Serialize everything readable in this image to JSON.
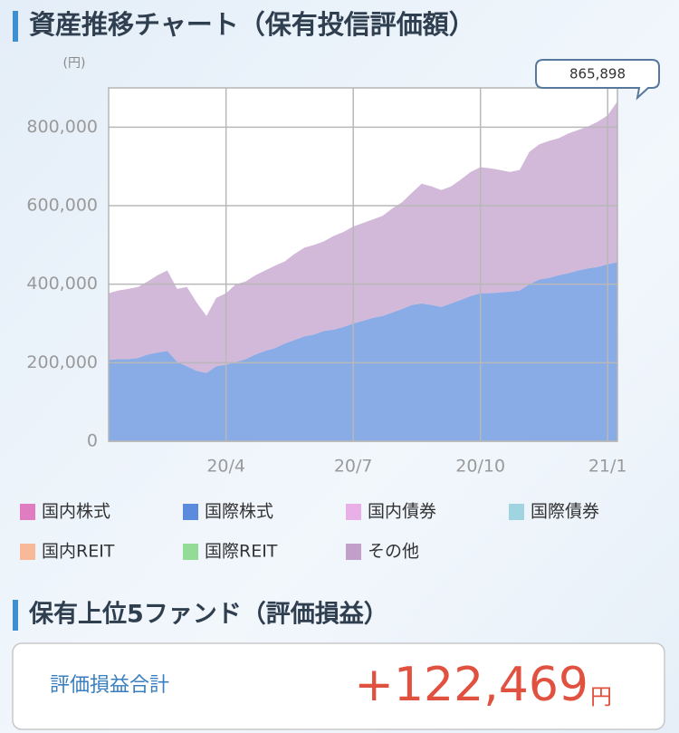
{
  "header": {
    "title": "資産推移チャート（保有投信評価額）"
  },
  "chart_data": {
    "type": "area",
    "stacked": true,
    "y_unit": "(円)",
    "annotation": "865,898",
    "categories": [
      null,
      null,
      null,
      null,
      null,
      null,
      null,
      null,
      null,
      null,
      null,
      null,
      "20/4",
      null,
      null,
      null,
      null,
      null,
      null,
      null,
      null,
      null,
      null,
      null,
      null,
      "20/7",
      null,
      null,
      null,
      null,
      null,
      null,
      null,
      null,
      null,
      null,
      null,
      null,
      "20/10",
      null,
      null,
      null,
      null,
      null,
      null,
      null,
      null,
      null,
      null,
      null,
      null,
      "21/1",
      null
    ],
    "ylim": [
      0,
      900000
    ],
    "yticks": [
      0,
      {
        "value": 200000,
        "label": "200,000"
      },
      {
        "value": 400000,
        "label": "400,000"
      },
      {
        "value": 600000,
        "label": "600,000"
      },
      {
        "value": 800000,
        "label": "800,000"
      }
    ],
    "grid": true,
    "series": [
      {
        "name": "国内株式",
        "color": "#e07cc0",
        "values": [
          0,
          0,
          0,
          0,
          0,
          0,
          0,
          0,
          0,
          0,
          0,
          0,
          0,
          0,
          0,
          0,
          0,
          0,
          0,
          0,
          0,
          0,
          0,
          0,
          0,
          0,
          0,
          0,
          0,
          0,
          0,
          0,
          0,
          0,
          0,
          0,
          0,
          0,
          0,
          0,
          0,
          0,
          0,
          0,
          0,
          0,
          0,
          0,
          0,
          0,
          0,
          0,
          0
        ]
      },
      {
        "name": "国際株式",
        "color": "#5b8bdc",
        "values": [
          207000,
          209000,
          209000,
          212000,
          221000,
          226000,
          230000,
          202000,
          191000,
          179000,
          174000,
          191000,
          195000,
          202000,
          209000,
          221000,
          230000,
          237000,
          249000,
          258000,
          267000,
          272000,
          281000,
          284000,
          291000,
          300000,
          307000,
          314000,
          319000,
          328000,
          337000,
          347000,
          351000,
          347000,
          342000,
          351000,
          360000,
          370000,
          377000,
          377000,
          379000,
          381000,
          384000,
          400000,
          412000,
          416000,
          423000,
          428000,
          435000,
          440000,
          444000,
          451000,
          456000
        ]
      },
      {
        "name": "国内債券",
        "color": "#e8b0e6",
        "values": [
          0,
          0,
          0,
          0,
          0,
          0,
          0,
          0,
          0,
          0,
          0,
          0,
          0,
          0,
          0,
          0,
          0,
          0,
          0,
          0,
          0,
          0,
          0,
          0,
          0,
          0,
          0,
          0,
          0,
          0,
          0,
          0,
          0,
          0,
          0,
          0,
          0,
          0,
          0,
          0,
          0,
          0,
          0,
          0,
          0,
          0,
          0,
          0,
          0,
          0,
          0,
          0,
          0
        ]
      },
      {
        "name": "国際債券",
        "color": "#9fd4e0",
        "values": [
          0,
          0,
          0,
          0,
          0,
          0,
          0,
          0,
          0,
          0,
          0,
          0,
          0,
          0,
          0,
          0,
          0,
          0,
          0,
          0,
          0,
          0,
          0,
          0,
          0,
          0,
          0,
          0,
          0,
          0,
          0,
          0,
          0,
          0,
          0,
          0,
          0,
          0,
          0,
          0,
          0,
          0,
          0,
          0,
          0,
          0,
          0,
          0,
          0,
          0,
          0,
          0,
          0
        ]
      },
      {
        "name": "国内REIT",
        "color": "#f7b997",
        "values": [
          0,
          0,
          0,
          0,
          0,
          0,
          0,
          0,
          0,
          0,
          0,
          0,
          0,
          0,
          0,
          0,
          0,
          0,
          0,
          0,
          0,
          0,
          0,
          0,
          0,
          0,
          0,
          0,
          0,
          0,
          0,
          0,
          0,
          0,
          0,
          0,
          0,
          0,
          0,
          0,
          0,
          0,
          0,
          0,
          0,
          0,
          0,
          0,
          0,
          0,
          0,
          0,
          0
        ]
      },
      {
        "name": "国際REIT",
        "color": "#93dc97",
        "values": [
          0,
          0,
          0,
          0,
          0,
          0,
          0,
          0,
          0,
          0,
          0,
          0,
          0,
          0,
          0,
          0,
          0,
          0,
          0,
          0,
          0,
          0,
          0,
          0,
          0,
          0,
          0,
          0,
          0,
          0,
          0,
          0,
          0,
          0,
          0,
          0,
          0,
          0,
          0,
          0,
          0,
          0,
          0,
          0,
          0,
          0,
          0,
          0,
          0,
          0,
          0,
          0,
          0
        ]
      },
      {
        "name": "その他",
        "color": "#c29ecb",
        "values": [
          170000,
          175000,
          179000,
          181000,
          186000,
          197000,
          205000,
          186000,
          202000,
          174000,
          145000,
          174000,
          182000,
          198000,
          198000,
          202000,
          205000,
          210000,
          209000,
          219000,
          226000,
          228000,
          228000,
          239000,
          242000,
          247000,
          249000,
          251000,
          255000,
          265000,
          272000,
          286000,
          305000,
          302000,
          298000,
          298000,
          307000,
          316000,
          321000,
          318000,
          312000,
          305000,
          307000,
          337000,
          344000,
          349000,
          349000,
          356000,
          358000,
          362000,
          370000,
          379000,
          409898
        ]
      }
    ]
  },
  "section": {
    "title": "保有上位5ファンド（評価損益）"
  },
  "summary": {
    "label": "評価損益合計",
    "value": "+122,469",
    "unit": "円"
  }
}
